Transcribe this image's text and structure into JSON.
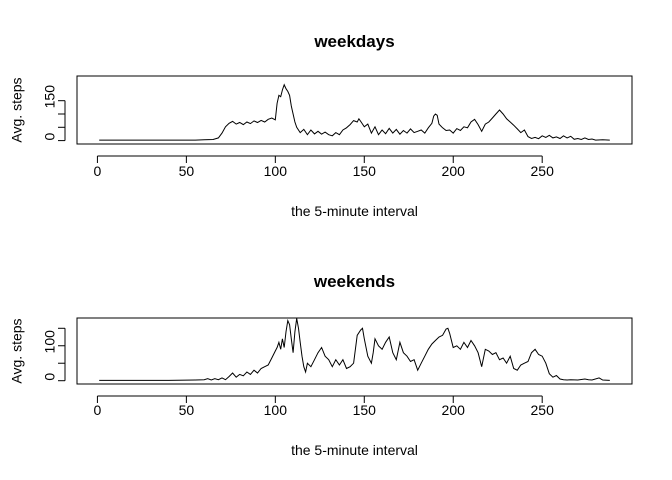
{
  "chart_data": [
    {
      "type": "line",
      "title": "weekdays",
      "xlabel": "the 5-minute interval",
      "ylabel": "Avg. steps",
      "xlim": [
        1,
        288
      ],
      "ylim": [
        0,
        230
      ],
      "xticks": [
        0,
        50,
        100,
        150,
        200,
        250
      ],
      "yticks": [
        0,
        50,
        100,
        150
      ],
      "yticklabels": [
        "0",
        "",
        "",
        "150"
      ],
      "grid": false,
      "series": [
        {
          "points": [
            [
              1,
              2
            ],
            [
              20,
              2
            ],
            [
              40,
              2
            ],
            [
              55,
              2
            ],
            [
              60,
              3
            ],
            [
              65,
              4
            ],
            [
              68,
              10
            ],
            [
              70,
              28
            ],
            [
              72,
              52
            ],
            [
              74,
              65
            ],
            [
              76,
              72
            ],
            [
              78,
              62
            ],
            [
              80,
              68
            ],
            [
              82,
              60
            ],
            [
              84,
              70
            ],
            [
              86,
              64
            ],
            [
              88,
              74
            ],
            [
              90,
              68
            ],
            [
              92,
              76
            ],
            [
              94,
              70
            ],
            [
              96,
              80
            ],
            [
              98,
              85
            ],
            [
              100,
              78
            ],
            [
              101,
              140
            ],
            [
              102,
              170
            ],
            [
              103,
              165
            ],
            [
              104,
              190
            ],
            [
              105,
              210
            ],
            [
              106,
              195
            ],
            [
              107,
              185
            ],
            [
              108,
              170
            ],
            [
              109,
              130
            ],
            [
              110,
              100
            ],
            [
              111,
              70
            ],
            [
              112,
              50
            ],
            [
              114,
              30
            ],
            [
              116,
              42
            ],
            [
              118,
              22
            ],
            [
              120,
              40
            ],
            [
              122,
              25
            ],
            [
              124,
              35
            ],
            [
              126,
              24
            ],
            [
              128,
              32
            ],
            [
              130,
              22
            ],
            [
              132,
              18
            ],
            [
              134,
              30
            ],
            [
              136,
              22
            ],
            [
              138,
              40
            ],
            [
              140,
              48
            ],
            [
              142,
              60
            ],
            [
              144,
              75
            ],
            [
              146,
              70
            ],
            [
              147,
              82
            ],
            [
              148,
              72
            ],
            [
              150,
              52
            ],
            [
              152,
              62
            ],
            [
              154,
              28
            ],
            [
              156,
              52
            ],
            [
              158,
              22
            ],
            [
              160,
              40
            ],
            [
              162,
              26
            ],
            [
              164,
              46
            ],
            [
              166,
              28
            ],
            [
              168,
              42
            ],
            [
              170,
              24
            ],
            [
              172,
              38
            ],
            [
              174,
              28
            ],
            [
              176,
              44
            ],
            [
              178,
              30
            ],
            [
              180,
              35
            ],
            [
              182,
              40
            ],
            [
              184,
              28
            ],
            [
              186,
              48
            ],
            [
              188,
              65
            ],
            [
              189,
              92
            ],
            [
              190,
              100
            ],
            [
              191,
              95
            ],
            [
              192,
              62
            ],
            [
              194,
              48
            ],
            [
              196,
              38
            ],
            [
              198,
              40
            ],
            [
              200,
              28
            ],
            [
              202,
              45
            ],
            [
              204,
              38
            ],
            [
              206,
              52
            ],
            [
              208,
              48
            ],
            [
              210,
              70
            ],
            [
              212,
              80
            ],
            [
              214,
              60
            ],
            [
              216,
              35
            ],
            [
              218,
              62
            ],
            [
              220,
              70
            ],
            [
              222,
              85
            ],
            [
              224,
              100
            ],
            [
              226,
              115
            ],
            [
              228,
              100
            ],
            [
              230,
              82
            ],
            [
              232,
              70
            ],
            [
              234,
              58
            ],
            [
              236,
              44
            ],
            [
              238,
              30
            ],
            [
              240,
              40
            ],
            [
              242,
              15
            ],
            [
              244,
              8
            ],
            [
              246,
              12
            ],
            [
              248,
              7
            ],
            [
              250,
              18
            ],
            [
              252,
              12
            ],
            [
              254,
              20
            ],
            [
              256,
              10
            ],
            [
              258,
              14
            ],
            [
              260,
              8
            ],
            [
              262,
              18
            ],
            [
              264,
              10
            ],
            [
              266,
              16
            ],
            [
              268,
              5
            ],
            [
              270,
              8
            ],
            [
              272,
              4
            ],
            [
              274,
              10
            ],
            [
              276,
              4
            ],
            [
              278,
              6
            ],
            [
              280,
              2
            ],
            [
              284,
              3
            ],
            [
              288,
              2
            ]
          ]
        }
      ]
    },
    {
      "type": "line",
      "title": "weekends",
      "xlabel": "the 5-minute interval",
      "ylabel": "Avg. steps",
      "xlim": [
        1,
        288
      ],
      "ylim": [
        0,
        170
      ],
      "xticks": [
        0,
        50,
        100,
        150,
        200,
        250
      ],
      "yticks": [
        0,
        50,
        100,
        150
      ],
      "yticklabels": [
        "0",
        "",
        "100",
        ""
      ],
      "grid": false,
      "series": [
        {
          "points": [
            [
              1,
              1
            ],
            [
              20,
              1
            ],
            [
              40,
              1
            ],
            [
              55,
              2
            ],
            [
              60,
              3
            ],
            [
              62,
              6
            ],
            [
              64,
              2
            ],
            [
              66,
              6
            ],
            [
              68,
              3
            ],
            [
              70,
              8
            ],
            [
              72,
              3
            ],
            [
              74,
              12
            ],
            [
              76,
              22
            ],
            [
              78,
              10
            ],
            [
              80,
              18
            ],
            [
              82,
              14
            ],
            [
              84,
              25
            ],
            [
              86,
              18
            ],
            [
              88,
              30
            ],
            [
              90,
              22
            ],
            [
              92,
              35
            ],
            [
              94,
              40
            ],
            [
              96,
              45
            ],
            [
              98,
              65
            ],
            [
              100,
              85
            ],
            [
              101,
              95
            ],
            [
              102,
              110
            ],
            [
              103,
              90
            ],
            [
              104,
              120
            ],
            [
              105,
              95
            ],
            [
              106,
              140
            ],
            [
              107,
              172
            ],
            [
              108,
              160
            ],
            [
              109,
              120
            ],
            [
              110,
              80
            ],
            [
              111,
              140
            ],
            [
              112,
              178
            ],
            [
              113,
              150
            ],
            [
              114,
              110
            ],
            [
              115,
              70
            ],
            [
              116,
              40
            ],
            [
              117,
              25
            ],
            [
              118,
              50
            ],
            [
              120,
              40
            ],
            [
              122,
              60
            ],
            [
              124,
              80
            ],
            [
              126,
              95
            ],
            [
              128,
              70
            ],
            [
              130,
              60
            ],
            [
              132,
              40
            ],
            [
              134,
              60
            ],
            [
              136,
              45
            ],
            [
              138,
              60
            ],
            [
              140,
              35
            ],
            [
              142,
              40
            ],
            [
              144,
              50
            ],
            [
              146,
              130
            ],
            [
              148,
              145
            ],
            [
              149,
              150
            ],
            [
              150,
              120
            ],
            [
              152,
              70
            ],
            [
              154,
              50
            ],
            [
              155,
              80
            ],
            [
              156,
              120
            ],
            [
              158,
              100
            ],
            [
              160,
              90
            ],
            [
              162,
              110
            ],
            [
              164,
              125
            ],
            [
              166,
              80
            ],
            [
              168,
              60
            ],
            [
              170,
              110
            ],
            [
              172,
              80
            ],
            [
              174,
              70
            ],
            [
              176,
              55
            ],
            [
              178,
              60
            ],
            [
              180,
              30
            ],
            [
              182,
              50
            ],
            [
              184,
              70
            ],
            [
              186,
              90
            ],
            [
              188,
              105
            ],
            [
              190,
              115
            ],
            [
              192,
              125
            ],
            [
              194,
              130
            ],
            [
              196,
              148
            ],
            [
              197,
              150
            ],
            [
              198,
              135
            ],
            [
              200,
              95
            ],
            [
              202,
              100
            ],
            [
              204,
              90
            ],
            [
              206,
              110
            ],
            [
              208,
              95
            ],
            [
              210,
              115
            ],
            [
              212,
              100
            ],
            [
              214,
              80
            ],
            [
              216,
              40
            ],
            [
              218,
              90
            ],
            [
              220,
              85
            ],
            [
              222,
              75
            ],
            [
              224,
              80
            ],
            [
              226,
              60
            ],
            [
              228,
              65
            ],
            [
              230,
              50
            ],
            [
              232,
              70
            ],
            [
              234,
              35
            ],
            [
              236,
              30
            ],
            [
              238,
              45
            ],
            [
              240,
              50
            ],
            [
              242,
              55
            ],
            [
              244,
              80
            ],
            [
              246,
              90
            ],
            [
              248,
              75
            ],
            [
              250,
              70
            ],
            [
              252,
              50
            ],
            [
              254,
              20
            ],
            [
              256,
              10
            ],
            [
              258,
              15
            ],
            [
              260,
              5
            ],
            [
              262,
              3
            ],
            [
              264,
              2
            ],
            [
              266,
              3
            ],
            [
              270,
              2
            ],
            [
              274,
              5
            ],
            [
              276,
              3
            ],
            [
              278,
              2
            ],
            [
              282,
              8
            ],
            [
              284,
              2
            ],
            [
              288,
              1
            ]
          ]
        }
      ]
    }
  ]
}
